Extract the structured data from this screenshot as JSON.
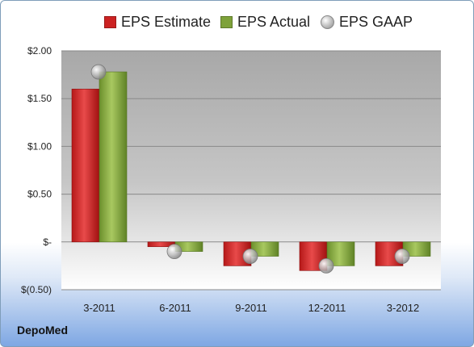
{
  "legend": {
    "estimate": "EPS Estimate",
    "actual": "EPS Actual",
    "gaap": "EPS GAAP"
  },
  "company": "DepoMed",
  "chart_data": {
    "type": "bar",
    "categories": [
      "3-2011",
      "6-2011",
      "9-2011",
      "12-2011",
      "3-2012"
    ],
    "series": [
      {
        "name": "EPS Estimate",
        "values": [
          1.6,
          -0.05,
          -0.25,
          -0.3,
          -0.25
        ],
        "color": "#cc2222"
      },
      {
        "name": "EPS Actual",
        "values": [
          1.78,
          -0.1,
          -0.15,
          -0.25,
          -0.15
        ],
        "color": "#7ea23a"
      },
      {
        "name": "EPS GAAP",
        "type": "scatter",
        "values": [
          1.78,
          -0.1,
          -0.15,
          -0.25,
          -0.15
        ],
        "color": "#b0b0b0"
      }
    ],
    "yticks": [
      2.0,
      1.5,
      1.0,
      0.5,
      0,
      -0.5
    ],
    "ytick_labels": [
      "$2.00",
      "$1.50",
      "$1.00",
      "$0.50",
      "$-",
      "$(0.50)"
    ],
    "ylim": [
      -0.5,
      2.0
    ],
    "grid": true,
    "legend_position": "top"
  }
}
